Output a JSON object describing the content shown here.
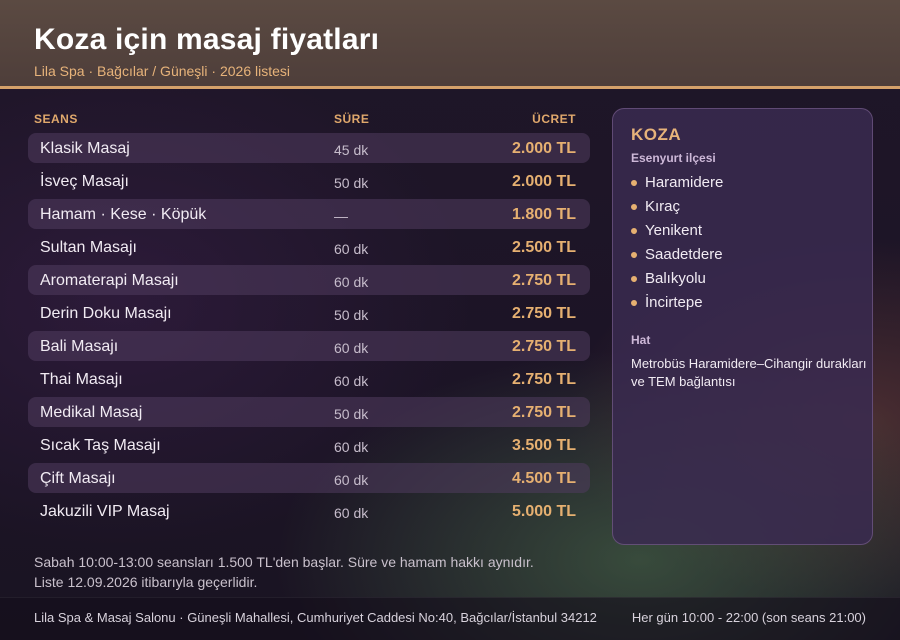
{
  "header": {
    "title": "Koza için masaj fiyatları",
    "subtitle": "Lila Spa · Bağcılar / Güneşli · 2026 listesi"
  },
  "table": {
    "headers": {
      "name": "SEANS",
      "duration": "SÜRE",
      "price": "ÜCRET"
    },
    "rows": [
      {
        "name": "Klasik Masaj",
        "duration": "45 dk",
        "price": "2.000 TL"
      },
      {
        "name": "İsveç Masajı",
        "duration": "50 dk",
        "price": "2.000 TL"
      },
      {
        "name": "Hamam · Kese · Köpük",
        "duration": "—",
        "price": "1.800 TL"
      },
      {
        "name": "Sultan Masajı",
        "duration": "60 dk",
        "price": "2.500 TL"
      },
      {
        "name": "Aromaterapi Masajı",
        "duration": "60 dk",
        "price": "2.750 TL"
      },
      {
        "name": "Derin Doku Masajı",
        "duration": "50 dk",
        "price": "2.750 TL"
      },
      {
        "name": "Bali Masajı",
        "duration": "60 dk",
        "price": "2.750 TL"
      },
      {
        "name": "Thai Masajı",
        "duration": "60 dk",
        "price": "2.750 TL"
      },
      {
        "name": "Medikal Masaj",
        "duration": "50 dk",
        "price": "2.750 TL"
      },
      {
        "name": "Sıcak Taş Masajı",
        "duration": "60 dk",
        "price": "3.500 TL"
      },
      {
        "name": "Çift Masajı",
        "duration": "60 dk",
        "price": "4.500 TL"
      },
      {
        "name": "Jakuzili VIP Masaj",
        "duration": "60 dk",
        "price": "5.000 TL"
      }
    ]
  },
  "sidebar": {
    "title": "KOZA",
    "subtitle": "Esenyurt ilçesi",
    "neighborhoods": [
      "Haramidere",
      "Kıraç",
      "Yenikent",
      "Saadetdere",
      "Balıkyolu",
      "İncirtepe"
    ],
    "route_label": "Hat",
    "route_text": "Metrobüs Haramidere–Cihangir durakları ve TEM bağlantısı"
  },
  "notes": {
    "line1": "Sabah 10:00-13:00 seansları 1.500 TL'den başlar. Süre ve hamam hakkı aynıdır.",
    "line2": "Liste 12.09.2026 itibarıyla geçerlidir."
  },
  "footer": {
    "address": "Lila Spa & Masaj Salonu · Güneşli Mahallesi, Cumhuriyet Caddesi No:40, Bağcılar/İstanbul 34212",
    "hours": "Her gün 10:00 - 22:00 (son seans 21:00)"
  },
  "colors": {
    "accent": "#e6b071",
    "header_bg": "#5b4a42",
    "panel_bg": "#3a2a50"
  }
}
